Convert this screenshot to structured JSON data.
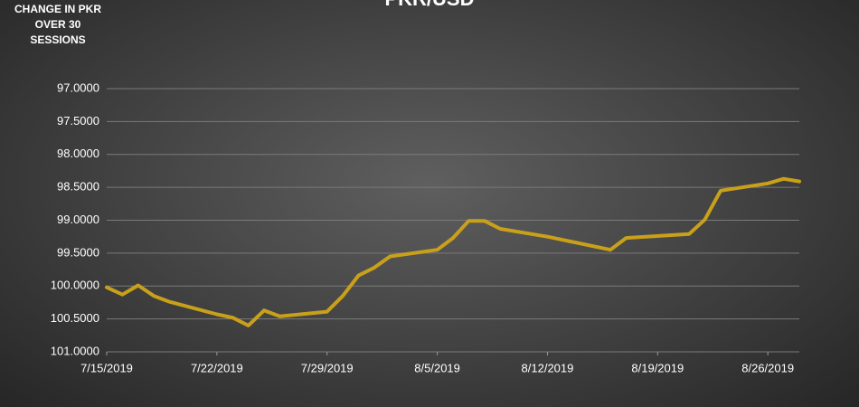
{
  "chart_data": {
    "type": "line",
    "title": "PKR/USD",
    "y_label": "CHANGE IN PKR OVER 30 SESSIONS",
    "x": [
      "7/15/2019",
      "7/16/2019",
      "7/17/2019",
      "7/18/2019",
      "7/19/2019",
      "7/22/2019",
      "7/23/2019",
      "7/24/2019",
      "7/25/2019",
      "7/26/2019",
      "7/29/2019",
      "7/30/2019",
      "7/31/2019",
      "8/1/2019",
      "8/2/2019",
      "8/5/2019",
      "8/6/2019",
      "8/7/2019",
      "8/8/2019",
      "8/9/2019",
      "8/12/2019",
      "8/16/2019",
      "8/17/2019",
      "8/21/2019",
      "8/22/2019",
      "8/23/2019",
      "8/26/2019",
      "8/27/2019",
      "8/28/2019"
    ],
    "series": [
      {
        "name": "PKR/USD",
        "color": "#c9a01a",
        "values": [
          100.02,
          100.13,
          99.99,
          100.15,
          100.24,
          100.43,
          100.48,
          100.6,
          100.37,
          100.46,
          100.39,
          100.15,
          99.84,
          99.72,
          99.55,
          99.45,
          99.27,
          99.01,
          99.01,
          99.13,
          99.25,
          99.45,
          99.27,
          99.21,
          98.99,
          98.55,
          98.44,
          98.37,
          98.41
        ]
      }
    ],
    "xlim": [
      "7/15/2019",
      "8/28/2019"
    ],
    "xticks": [
      "7/15/2019",
      "7/22/2019",
      "7/29/2019",
      "8/5/2019",
      "8/12/2019",
      "8/19/2019",
      "8/26/2019"
    ],
    "ylim": [
      97,
      101
    ],
    "y_inverted": true,
    "yticks": [
      {
        "value": 97,
        "label": "97.0000"
      },
      {
        "value": 97.5,
        "label": "97.5000"
      },
      {
        "value": 98,
        "label": "98.0000"
      },
      {
        "value": 98.5,
        "label": "98.5000"
      },
      {
        "value": 99,
        "label": "99.0000"
      },
      {
        "value": 99.5,
        "label": "99.5000"
      },
      {
        "value": 100,
        "label": "100.0000"
      },
      {
        "value": 100.5,
        "label": "100.5000"
      },
      {
        "value": 101,
        "label": "101.0000"
      }
    ],
    "grid": true
  }
}
